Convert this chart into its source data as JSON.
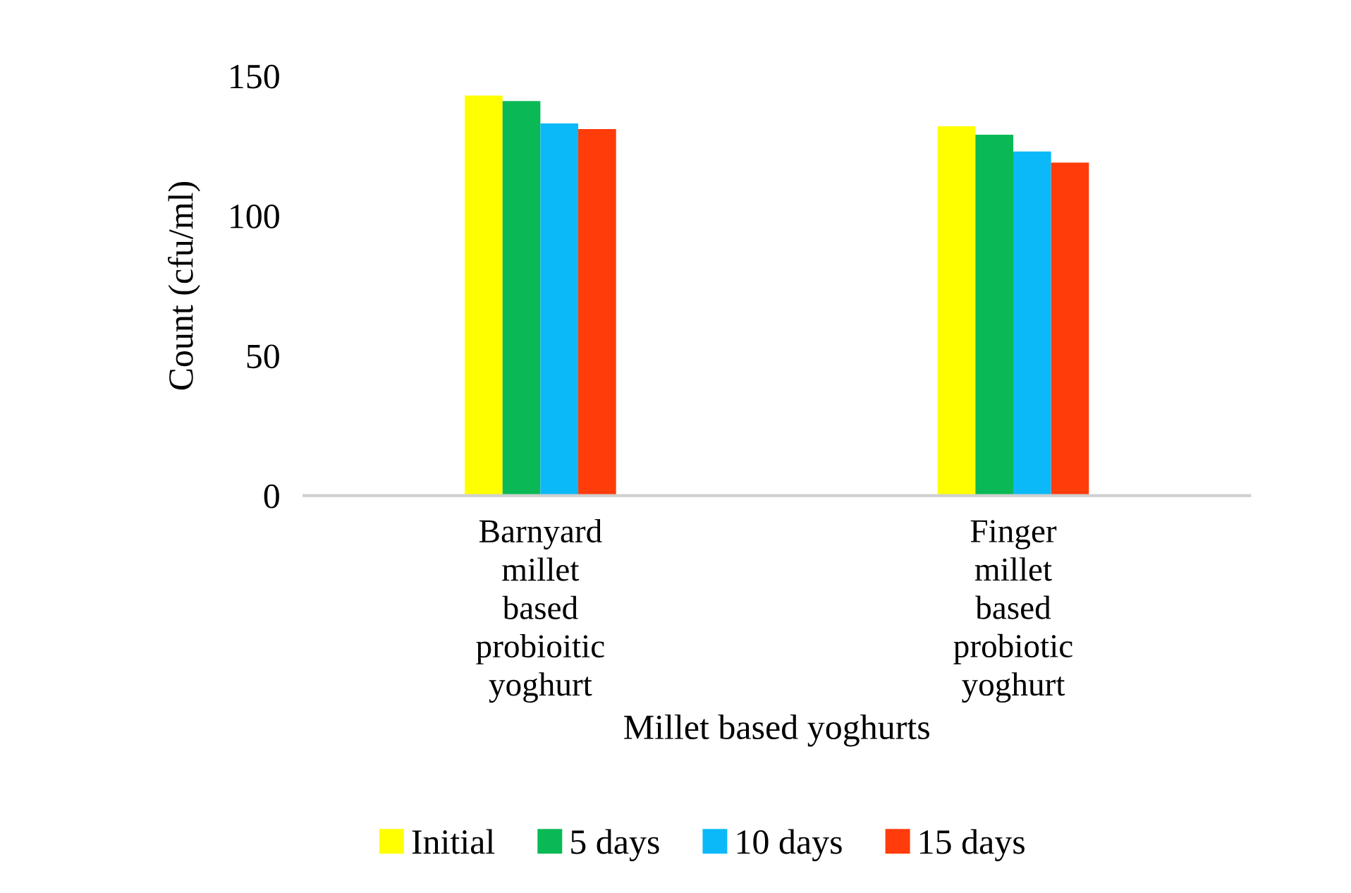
{
  "chart_data": {
    "type": "bar",
    "xlabel": "Millet based yoghurts",
    "ylabel": "Count (cfu/ml)",
    "categories": [
      "Barnyard\nmillet\nbased\nprobioitic\nyoghurt",
      "Finger\nmillet\nbased\nprobiotic\nyoghurt"
    ],
    "series": [
      {
        "name": "Initial",
        "color": "#ffff00",
        "values": [
          143,
          132
        ]
      },
      {
        "name": "5 days",
        "color": "#0ab955",
        "values": [
          141,
          129
        ]
      },
      {
        "name": "10 days",
        "color": "#0bb9f9",
        "values": [
          133,
          123
        ]
      },
      {
        "name": "15 days",
        "color": "#ff3c0a",
        "values": [
          131,
          119
        ]
      }
    ],
    "ylim": [
      0,
      150
    ],
    "yticks": [
      0,
      50,
      100,
      150
    ],
    "grid": false,
    "legend": "bottom"
  }
}
